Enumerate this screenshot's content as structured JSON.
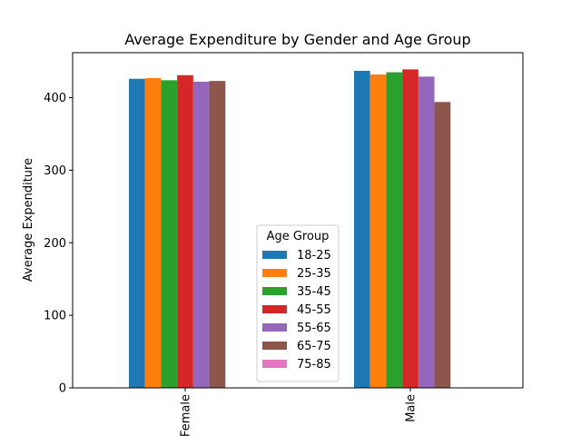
{
  "chart_data": {
    "type": "bar",
    "title": "Average Expenditure by Gender and Age Group",
    "xlabel": "",
    "ylabel": "Average Expenditure",
    "categories": [
      "Female",
      "Male"
    ],
    "ylim": [
      0,
      462
    ],
    "yticks": [
      0,
      100,
      200,
      300,
      400
    ],
    "grid": false,
    "legend": {
      "title": "Age Group",
      "placement": "lower center"
    },
    "series": [
      {
        "name": "18-25",
        "color": "#1f77b4",
        "values": [
          426,
          437
        ]
      },
      {
        "name": "25-35",
        "color": "#ff7f0e",
        "values": [
          427,
          432
        ]
      },
      {
        "name": "35-45",
        "color": "#2ca02c",
        "values": [
          424,
          435
        ]
      },
      {
        "name": "45-55",
        "color": "#d62728",
        "values": [
          431,
          439
        ]
      },
      {
        "name": "55-65",
        "color": "#9467bd",
        "values": [
          422,
          429
        ]
      },
      {
        "name": "65-75",
        "color": "#8c564b",
        "values": [
          423,
          394
        ]
      },
      {
        "name": "75-85",
        "color": "#e377c2",
        "values": [
          0,
          0
        ]
      }
    ]
  }
}
